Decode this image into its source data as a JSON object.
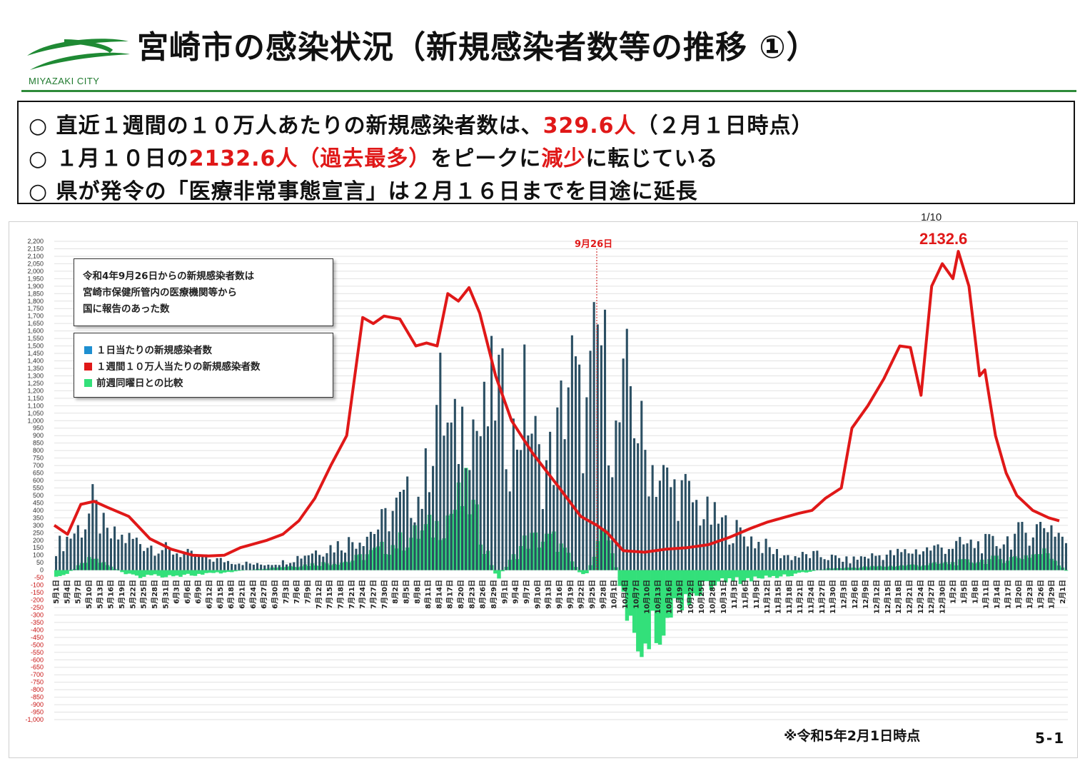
{
  "header": {
    "logo_text": "MIYAZAKI CITY",
    "title": "宮崎市の感染状況（新規感染者数等の推移 ①）"
  },
  "summary": {
    "line1_prefix": "○ 直近１週間の１０万人あたりの新規感染者数は、",
    "line1_value": "329.6人",
    "line1_suffix": "（２月１日時点）",
    "line2_prefix": "○ １月１０日の",
    "line2_value": "2132.6人（過去最多）",
    "line2_mid": "をピークに",
    "line2_red2": "減少",
    "line2_suffix": "に転じている",
    "line3": "○ 県が発令の「医療非常事態宣言」は２月１６日までを目途に延長"
  },
  "annotations": {
    "peak_date": "1/10",
    "peak_value": "2132.6",
    "vline_label": "9月26日",
    "note_lines": [
      "令和4年9月26日からの新規感染者数は",
      "宮崎市保健所管内の医療機関等から",
      "国に報告のあった数"
    ]
  },
  "legend": [
    {
      "label": "１日当たりの新規感染者数",
      "color": "#1e8fd0"
    },
    {
      "label": "１週間１０万人当たりの新規感染者数",
      "color": "#e01818"
    },
    {
      "label": "前週同曜日との比較",
      "color": "#33e07a"
    }
  ],
  "footer": {
    "footnote": "※令和5年2月1日時点",
    "page_number": "5-1"
  },
  "colors": {
    "bar": "#2b4f63",
    "line": "#e01818",
    "diff": "#33e07a",
    "grid": "#e2e2e2",
    "tick_negative": "#c81010"
  },
  "chart_data": {
    "type": "bar",
    "title": "",
    "xlabel": "",
    "ylabel": "",
    "ylim": [
      -1000,
      2200
    ],
    "y_tick_step": 50,
    "x_tick_labels": [
      "5月1日",
      "5月4日",
      "5月7日",
      "5月10日",
      "5月13日",
      "5月16日",
      "5月19日",
      "5月22日",
      "5月25日",
      "5月28日",
      "5月31日",
      "6月3日",
      "6月6日",
      "6月9日",
      "6月12日",
      "6月15日",
      "6月18日",
      "6月21日",
      "6月24日",
      "6月27日",
      "6月30日",
      "7月3日",
      "7月6日",
      "7月9日",
      "7月12日",
      "7月15日",
      "7月18日",
      "7月21日",
      "7月24日",
      "7月27日",
      "7月30日",
      "8月2日",
      "8月5日",
      "8月8日",
      "8月11日",
      "8月14日",
      "8月17日",
      "8月20日",
      "8月23日",
      "8月26日",
      "8月29日",
      "9月1日",
      "9月4日",
      "9月7日",
      "9月10日",
      "9月13日",
      "9月16日",
      "9月19日",
      "9月22日",
      "9月25日",
      "9月28日",
      "10月1日",
      "10月4日",
      "10月7日",
      "10月10日",
      "10月13日",
      "10月16日",
      "10月19日",
      "10月22日",
      "10月25日",
      "10月28日",
      "10月31日",
      "11月3日",
      "11月6日",
      "11月9日",
      "11月12日",
      "11月15日",
      "11月18日",
      "11月21日",
      "11月24日",
      "11月27日",
      "11月30日",
      "12月3日",
      "12月6日",
      "12月9日",
      "12月12日",
      "12月15日",
      "12月18日",
      "12月21日",
      "12月24日",
      "12月27日",
      "12月30日",
      "1月2日",
      "1月5日",
      "1月8日",
      "1月11日",
      "1月14日",
      "1月17日",
      "1月20日",
      "1月23日",
      "1月26日",
      "1月29日",
      "2月1日"
    ],
    "day_count": 277,
    "series": [
      {
        "name": "１日当たりの新規感染者数",
        "type": "bar",
        "key_points": [
          [
            0,
            170
          ],
          [
            8,
            350
          ],
          [
            10,
            470
          ],
          [
            14,
            250
          ],
          [
            20,
            230
          ],
          [
            30,
            150
          ],
          [
            40,
            90
          ],
          [
            55,
            40
          ],
          [
            62,
            60
          ],
          [
            70,
            140
          ],
          [
            80,
            210
          ],
          [
            88,
            320
          ],
          [
            92,
            440
          ],
          [
            96,
            530
          ],
          [
            100,
            560
          ],
          [
            104,
            1300
          ],
          [
            108,
            900
          ],
          [
            112,
            1200
          ],
          [
            116,
            1000
          ],
          [
            120,
            1400
          ],
          [
            124,
            900
          ],
          [
            128,
            1300
          ],
          [
            132,
            700
          ],
          [
            136,
            900
          ],
          [
            140,
            1500
          ],
          [
            144,
            1000
          ],
          [
            148,
            1800
          ],
          [
            152,
            900
          ],
          [
            156,
            1400
          ],
          [
            160,
            880
          ],
          [
            164,
            700
          ],
          [
            168,
            600
          ],
          [
            172,
            550
          ],
          [
            176,
            420
          ],
          [
            180,
            360
          ],
          [
            184,
            300
          ],
          [
            188,
            250
          ],
          [
            192,
            190
          ],
          [
            196,
            130
          ],
          [
            200,
            100
          ],
          [
            206,
            110
          ],
          [
            212,
            90
          ],
          [
            216,
            70
          ],
          [
            220,
            100
          ],
          [
            228,
            120
          ],
          [
            236,
            150
          ],
          [
            244,
            180
          ],
          [
            250,
            190
          ],
          [
            256,
            200
          ],
          [
            262,
            260
          ],
          [
            266,
            300
          ],
          [
            270,
            350
          ],
          [
            274,
            250
          ],
          [
            276,
            170
          ]
        ]
      },
      {
        "name": "１週間１０万人当たりの新規感染者数",
        "type": "line",
        "key_points": [
          [
            0,
            300
          ],
          [
            5,
            240
          ],
          [
            10,
            440
          ],
          [
            15,
            460
          ],
          [
            20,
            420
          ],
          [
            28,
            360
          ],
          [
            36,
            210
          ],
          [
            44,
            140
          ],
          [
            52,
            100
          ],
          [
            58,
            95
          ],
          [
            64,
            100
          ],
          [
            70,
            150
          ],
          [
            80,
            200
          ],
          [
            86,
            240
          ],
          [
            92,
            330
          ],
          [
            98,
            480
          ],
          [
            104,
            700
          ],
          [
            110,
            900
          ],
          [
            116,
            1690
          ],
          [
            120,
            1650
          ],
          [
            124,
            1700
          ],
          [
            130,
            1680
          ],
          [
            136,
            1500
          ],
          [
            140,
            1520
          ],
          [
            144,
            1500
          ],
          [
            148,
            1850
          ],
          [
            152,
            1800
          ],
          [
            156,
            1890
          ],
          [
            160,
            1720
          ],
          [
            166,
            1300
          ],
          [
            172,
            1000
          ],
          [
            180,
            780
          ],
          [
            190,
            550
          ],
          [
            198,
            360
          ],
          [
            204,
            300
          ],
          [
            208,
            250
          ],
          [
            214,
            130
          ],
          [
            222,
            120
          ],
          [
            230,
            140
          ],
          [
            238,
            150
          ],
          [
            246,
            170
          ],
          [
            254,
            220
          ],
          [
            262,
            280
          ],
          [
            268,
            320
          ],
          [
            274,
            350
          ],
          [
            280,
            380
          ],
          [
            285,
            400
          ],
          [
            290,
            480
          ],
          [
            296,
            550
          ],
          [
            300,
            950
          ],
          [
            306,
            1100
          ],
          [
            312,
            1280
          ],
          [
            318,
            1500
          ],
          [
            322,
            1490
          ],
          [
            326,
            1170
          ],
          [
            330,
            1900
          ],
          [
            334,
            2050
          ],
          [
            338,
            1950
          ],
          [
            340,
            2132.6
          ],
          [
            344,
            1900
          ],
          [
            348,
            1300
          ],
          [
            350,
            1340
          ],
          [
            354,
            900
          ],
          [
            358,
            650
          ],
          [
            362,
            500
          ],
          [
            368,
            400
          ],
          [
            374,
            350
          ],
          [
            378,
            329.6
          ]
        ]
      },
      {
        "name": "前週同曜日との比較",
        "type": "bar",
        "key_points": [
          [
            0,
            -60
          ],
          [
            10,
            80
          ],
          [
            20,
            -40
          ],
          [
            40,
            -30
          ],
          [
            60,
            20
          ],
          [
            80,
            60
          ],
          [
            96,
            210
          ],
          [
            104,
            300
          ],
          [
            112,
            500
          ],
          [
            120,
            -60
          ],
          [
            128,
            200
          ],
          [
            136,
            200
          ],
          [
            144,
            -60
          ],
          [
            150,
            300
          ],
          [
            156,
            -400
          ],
          [
            160,
            -500
          ],
          [
            164,
            -400
          ],
          [
            170,
            -200
          ],
          [
            180,
            -80
          ],
          [
            190,
            -60
          ],
          [
            200,
            -30
          ],
          [
            210,
            10
          ],
          [
            220,
            20
          ],
          [
            230,
            30
          ],
          [
            240,
            40
          ],
          [
            250,
            60
          ],
          [
            260,
            80
          ],
          [
            270,
            120
          ],
          [
            276,
            -30
          ]
        ]
      }
    ]
  }
}
